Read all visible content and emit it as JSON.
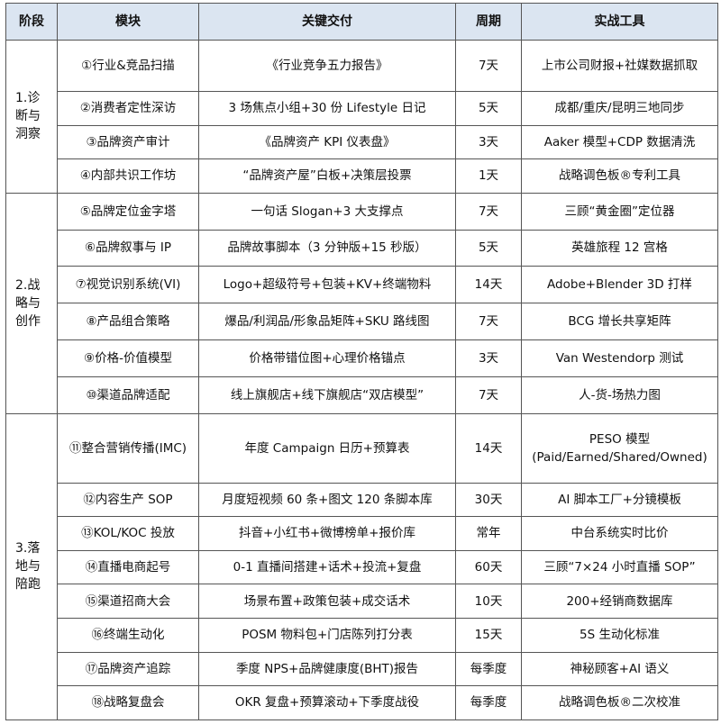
{
  "headers": [
    "阶段",
    "模块",
    "关键交付",
    "周期",
    "实战工具"
  ],
  "stages": [
    {
      "label": "1.诊断与洞察",
      "rows": [
        {
          "module": "①行业&竞品扫描",
          "deliverable": "《行业竞争五力报告》",
          "period": "7天",
          "tool": "上市公司财报+社媒数据抓取"
        },
        {
          "module": "②消费者定性深访",
          "deliverable": "3 场焦点小组+30 份 Lifestyle 日记",
          "period": "5天",
          "tool": "成都/重庆/昆明三地同步"
        },
        {
          "module": "③品牌资产审计",
          "deliverable": "《品牌资产 KPI 仪表盘》",
          "period": "3天",
          "tool": "Aaker 模型+CDP 数据清洗"
        },
        {
          "module": "④内部共识工作坊",
          "deliverable": "“品牌资产屋”白板+决策层投票",
          "period": "1天",
          "tool": "战略调色板®专利工具"
        }
      ]
    },
    {
      "label": "2.战略与创作",
      "rows": [
        {
          "module": "⑤品牌定位金字塔",
          "deliverable": "一句话 Slogan+3 大支撑点",
          "period": "7天",
          "tool": "三顾“黄金圈”定位器"
        },
        {
          "module": "⑥品牌叙事与 IP",
          "deliverable": "品牌故事脚本（3 分钟版+15 秒版）",
          "period": "5天",
          "tool": "英雄旅程 12 宫格"
        },
        {
          "module": "⑦视觉识别系统(VI)",
          "deliverable": "Logo+超级符号+包装+KV+终端物料",
          "period": "14天",
          "tool": "Adobe+Blender 3D 打样"
        },
        {
          "module": "⑧产品组合策略",
          "deliverable": "爆品/利润品/形象品矩阵+SKU 路线图",
          "period": "7天",
          "tool": "BCG 增长共享矩阵"
        },
        {
          "module": "⑨价格-价值模型",
          "deliverable": "价格带错位图+心理价格锚点",
          "period": "3天",
          "tool": "Van Westendorp 测试"
        },
        {
          "module": "⑩渠道品牌适配",
          "deliverable": "线上旗舰店+线下旗舰店“双店模型”",
          "period": "7天",
          "tool": "人-货-场热力图"
        }
      ]
    },
    {
      "label": "3.落地与陪跑",
      "rows": [
        {
          "module": "⑪整合营销传播(IMC)",
          "deliverable": "年度 Campaign 日历+预算表",
          "period": "14天",
          "tool": "PESO 模型(Paid/Earned/Shared/Owned)"
        },
        {
          "module": "⑫内容生产 SOP",
          "deliverable": "月度短视频 60 条+图文 120 条脚本库",
          "period": "30天",
          "tool": "AI 脚本工厂+分镜模板"
        },
        {
          "module": "⑬KOL/KOC 投放",
          "deliverable": "抖音+小红书+微博榜单+报价库",
          "period": "常年",
          "tool": "中台系统实时比价"
        },
        {
          "module": "⑭直播电商起号",
          "deliverable": "0-1 直播间搭建+话术+投流+复盘",
          "period": "60天",
          "tool": "三顾“7×24 小时直播 SOP”"
        },
        {
          "module": "⑮渠道招商大会",
          "deliverable": "场景布置+政策包装+成交话术",
          "period": "10天",
          "tool": "200+经销商数据库"
        },
        {
          "module": "⑯终端生动化",
          "deliverable": "POSM 物料包+门店陈列打分表",
          "period": "15天",
          "tool": "5S 生动化标准"
        },
        {
          "module": "⑰品牌资产追踪",
          "deliverable": "季度 NPS+品牌健康度(BHT)报告",
          "period": "每季度",
          "tool": "神秘顾客+AI 语义"
        },
        {
          "module": "⑱战略复盘会",
          "deliverable": "OKR 复盘+预算滚动+下季度战役",
          "period": "每季度",
          "tool": "战略调色板®二次校准"
        }
      ]
    }
  ]
}
